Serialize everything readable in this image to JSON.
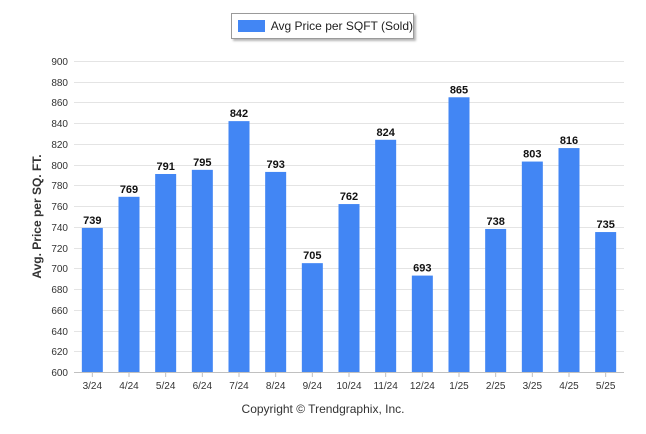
{
  "chart_data": {
    "type": "bar",
    "categories": [
      "3/24",
      "4/24",
      "5/24",
      "6/24",
      "7/24",
      "8/24",
      "9/24",
      "10/24",
      "11/24",
      "12/24",
      "1/25",
      "2/25",
      "3/25",
      "4/25",
      "5/25"
    ],
    "series": [
      {
        "name": "Avg Price per SQFT (Sold)",
        "values": [
          739,
          769,
          791,
          795,
          842,
          793,
          705,
          762,
          824,
          693,
          865,
          738,
          803,
          816,
          735
        ],
        "color": "#4286f4"
      }
    ],
    "ylabel": "Avg. Price per SQ. FT.",
    "xlabel": "",
    "ylim": [
      600,
      900
    ],
    "yticks": [
      600,
      620,
      640,
      660,
      680,
      700,
      720,
      740,
      760,
      780,
      800,
      820,
      840,
      860,
      880,
      900
    ],
    "grid": true,
    "legend_position": "top-center",
    "data_labels": true
  },
  "footer": {
    "copyright": "Copyright © Trendgraphix, Inc."
  }
}
